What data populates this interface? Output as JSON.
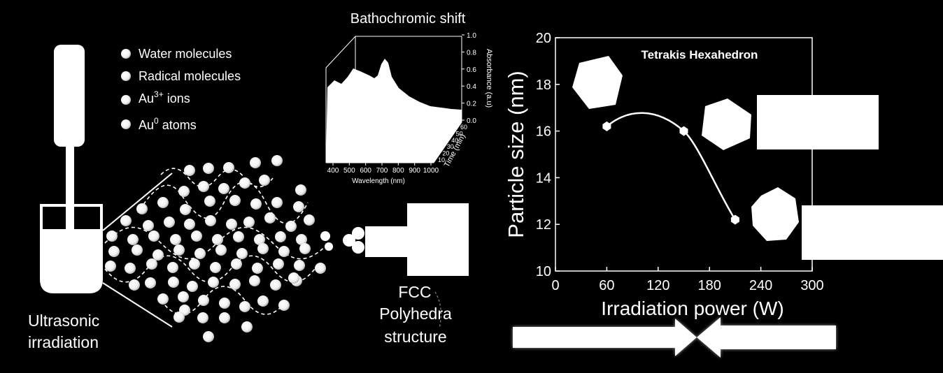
{
  "legend": {
    "water": "Water molecules",
    "radical": "Radical molecules",
    "au3_base": "Au",
    "au3_sup": "3+",
    "au3_tail": " ions",
    "au0_base": "Au",
    "au0_sup": "0",
    "au0_tail": " atoms"
  },
  "labels": {
    "ultrasonic_1": "Ultrasonic",
    "ultrasonic_2": "irradiation",
    "fcc_1": "FCC",
    "fcc_2": "Polyhedra",
    "fcc_3": "structure"
  },
  "colors": {
    "background": "#000000",
    "foreground": "#ffffff"
  },
  "chart_data": [
    {
      "type": "area",
      "title": "Bathochromic  shift",
      "xlabel": "Wavelength (nm)",
      "ylabel": "Absorbance (a.u)",
      "zlabel": "Time (min)",
      "x_ticks": [
        "400",
        "500",
        "600",
        "700",
        "800",
        "900",
        "1000"
      ],
      "y_ticks": [
        "0.0",
        "0.2",
        "0.4",
        "0.6",
        "0.8",
        "1.0"
      ],
      "z_ticks": [
        "10",
        "20",
        "30",
        "40",
        "50",
        "60"
      ],
      "xlim": [
        380,
        1000
      ],
      "ylim": [
        0,
        1.0
      ],
      "peaks_nm": [
        520,
        720
      ]
    },
    {
      "type": "line",
      "title": "Tetrakis Hexahedron",
      "xlabel": "Irradiation power (W)",
      "ylabel": "Particle size (nm)",
      "xlim": [
        0,
        300
      ],
      "ylim": [
        10,
        20
      ],
      "x_ticks": [
        "0",
        "60",
        "120",
        "180",
        "240",
        "300"
      ],
      "y_ticks": [
        "10",
        "12",
        "14",
        "16",
        "18",
        "20"
      ],
      "x": [
        60,
        150,
        210
      ],
      "y": [
        16.2,
        16.0,
        12.2
      ]
    }
  ]
}
